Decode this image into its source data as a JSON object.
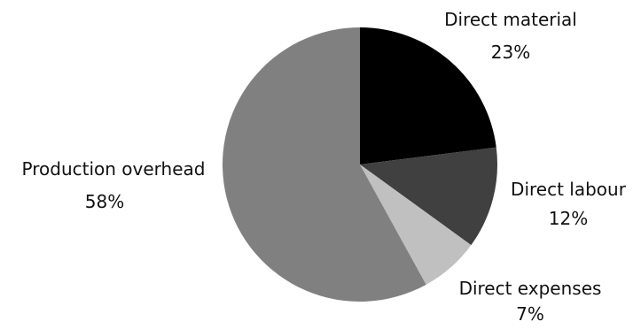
{
  "chart_data": {
    "type": "pie",
    "categories": [
      "Direct material",
      "Direct labour",
      "Direct expenses",
      "Production overhead"
    ],
    "values": [
      23,
      12,
      7,
      58
    ],
    "value_labels": [
      "23%",
      "12%",
      "7%",
      "58%"
    ],
    "colors": [
      "#000000",
      "#404040",
      "#c0c0c0",
      "#808080"
    ],
    "start_angle_deg": 0,
    "direction": "clockwise",
    "legend": "none"
  }
}
